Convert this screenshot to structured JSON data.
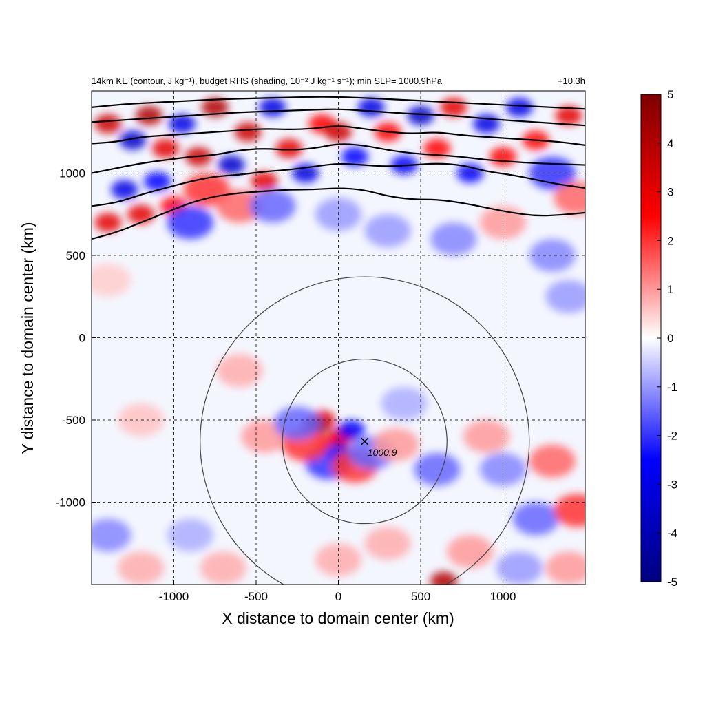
{
  "chart_data": {
    "type": "heatmap",
    "title_left": "14km KE (contour, J kg⁻¹), budget RHS (shading, 10⁻² J kg⁻¹ s⁻¹); min SLP= 1000.9hPa",
    "title_right": "+10.3h",
    "xlabel": "X distance to domain center (km)",
    "ylabel": "Y distance to domain center (km)",
    "xlim": [
      -1500,
      1500
    ],
    "ylim": [
      -1500,
      1500
    ],
    "x_ticks": [
      -1000,
      -500,
      0,
      500,
      1000
    ],
    "y_ticks": [
      -1000,
      -500,
      0,
      500,
      1000
    ],
    "x_tick_labels": [
      "-1000",
      "-500",
      "0",
      "500",
      "1000"
    ],
    "y_tick_labels": [
      "-1000",
      "-500",
      "0",
      "500",
      "1000"
    ],
    "grid": true,
    "colorbar": {
      "min": -5,
      "max": 5,
      "ticks": [
        5,
        4,
        3,
        2,
        1,
        0,
        -1,
        -2,
        -3,
        -4,
        -5
      ],
      "tick_labels": [
        "5",
        "4",
        "3",
        "2",
        "1",
        "0",
        "-1",
        "-2",
        "-3",
        "-4",
        "-5"
      ],
      "colors": [
        "#00007f",
        "#0000ff",
        "#ffffff",
        "#ff0000",
        "#7f0000"
      ],
      "placement": "right"
    },
    "storm_center": {
      "x": 160,
      "y": -630,
      "min_slp_label": "1000.9"
    },
    "range_circles_radius_km": [
      500,
      1000
    ],
    "ke_contours": [
      {
        "points": [
          [
            -1500,
            600
          ],
          [
            -1350,
            640
          ],
          [
            -1200,
            700
          ],
          [
            -1050,
            760
          ],
          [
            -900,
            820
          ],
          [
            -750,
            860
          ],
          [
            -600,
            880
          ],
          [
            -450,
            890
          ],
          [
            -300,
            900
          ],
          [
            -150,
            900
          ],
          [
            0,
            910
          ],
          [
            150,
            900
          ],
          [
            300,
            860
          ],
          [
            450,
            840
          ],
          [
            600,
            840
          ],
          [
            750,
            820
          ],
          [
            900,
            790
          ],
          [
            1050,
            760
          ],
          [
            1200,
            740
          ],
          [
            1350,
            745
          ],
          [
            1500,
            760
          ]
        ]
      },
      {
        "points": [
          [
            -1500,
            800
          ],
          [
            -1350,
            820
          ],
          [
            -1200,
            870
          ],
          [
            -1050,
            910
          ],
          [
            -900,
            950
          ],
          [
            -750,
            980
          ],
          [
            -600,
            990
          ],
          [
            -450,
            1010
          ],
          [
            -300,
            1020
          ],
          [
            -150,
            1040
          ],
          [
            0,
            1060
          ],
          [
            150,
            1050
          ],
          [
            300,
            1040
          ],
          [
            450,
            1050
          ],
          [
            600,
            1060
          ],
          [
            750,
            1050
          ],
          [
            900,
            1010
          ],
          [
            1050,
            990
          ],
          [
            1200,
            960
          ],
          [
            1350,
            930
          ],
          [
            1500,
            910
          ]
        ]
      },
      {
        "points": [
          [
            -1500,
            1000
          ],
          [
            -1350,
            1030
          ],
          [
            -1200,
            1060
          ],
          [
            -1050,
            1080
          ],
          [
            -900,
            1100
          ],
          [
            -750,
            1110
          ],
          [
            -600,
            1140
          ],
          [
            -450,
            1150
          ],
          [
            -300,
            1140
          ],
          [
            -150,
            1150
          ],
          [
            0,
            1180
          ],
          [
            150,
            1170
          ],
          [
            300,
            1140
          ],
          [
            450,
            1120
          ],
          [
            600,
            1110
          ],
          [
            750,
            1100
          ],
          [
            900,
            1080
          ],
          [
            1050,
            1070
          ],
          [
            1200,
            1060
          ],
          [
            1350,
            1055
          ],
          [
            1500,
            1050
          ]
        ]
      },
      {
        "points": [
          [
            -1500,
            1180
          ],
          [
            -1350,
            1190
          ],
          [
            -1200,
            1220
          ],
          [
            -1050,
            1230
          ],
          [
            -900,
            1240
          ],
          [
            -750,
            1250
          ],
          [
            -600,
            1260
          ],
          [
            -450,
            1270
          ],
          [
            -300,
            1265
          ],
          [
            -150,
            1270
          ],
          [
            0,
            1290
          ],
          [
            150,
            1270
          ],
          [
            300,
            1250
          ],
          [
            450,
            1240
          ],
          [
            600,
            1250
          ],
          [
            750,
            1230
          ],
          [
            900,
            1220
          ],
          [
            1050,
            1210
          ],
          [
            1200,
            1200
          ],
          [
            1350,
            1190
          ],
          [
            1500,
            1170
          ]
        ]
      },
      {
        "points": [
          [
            -1500,
            1310
          ],
          [
            -1350,
            1320
          ],
          [
            -1200,
            1330
          ],
          [
            -1050,
            1340
          ],
          [
            -900,
            1350
          ],
          [
            -750,
            1360
          ],
          [
            -600,
            1370
          ],
          [
            -450,
            1375
          ],
          [
            -300,
            1380
          ],
          [
            -150,
            1385
          ],
          [
            0,
            1390
          ],
          [
            150,
            1380
          ],
          [
            300,
            1370
          ],
          [
            450,
            1360
          ],
          [
            600,
            1355
          ],
          [
            750,
            1345
          ],
          [
            900,
            1330
          ],
          [
            1050,
            1320
          ],
          [
            1200,
            1310
          ],
          [
            1350,
            1300
          ],
          [
            1500,
            1290
          ]
        ]
      },
      {
        "points": [
          [
            -1500,
            1400
          ],
          [
            -1300,
            1420
          ],
          [
            -1100,
            1430
          ],
          [
            -900,
            1440
          ],
          [
            -700,
            1450
          ],
          [
            -500,
            1455
          ],
          [
            -300,
            1460
          ],
          [
            -100,
            1465
          ],
          [
            100,
            1460
          ],
          [
            300,
            1450
          ],
          [
            500,
            1440
          ],
          [
            700,
            1430
          ],
          [
            900,
            1420
          ],
          [
            1100,
            1410
          ],
          [
            1300,
            1400
          ],
          [
            1500,
            1390
          ]
        ]
      }
    ],
    "shading_blobs": [
      {
        "x": -1400,
        "y": 1300,
        "v": 3.5
      },
      {
        "x": -1250,
        "y": 1200,
        "v": -3.5
      },
      {
        "x": -1150,
        "y": 1350,
        "v": 4
      },
      {
        "x": -1050,
        "y": 1150,
        "v": 3
      },
      {
        "x": -950,
        "y": 1300,
        "v": -3
      },
      {
        "x": -850,
        "y": 1100,
        "v": 3.5
      },
      {
        "x": -750,
        "y": 1400,
        "v": 4
      },
      {
        "x": -650,
        "y": 1050,
        "v": -3.5
      },
      {
        "x": -550,
        "y": 1250,
        "v": 3.5
      },
      {
        "x": -450,
        "y": 950,
        "v": 3
      },
      {
        "x": -400,
        "y": 1400,
        "v": -3
      },
      {
        "x": -300,
        "y": 1150,
        "v": 3
      },
      {
        "x": -200,
        "y": 1000,
        "v": -3
      },
      {
        "x": -100,
        "y": 1300,
        "v": 2.5
      },
      {
        "x": 0,
        "y": 1250,
        "v": 3.5
      },
      {
        "x": 100,
        "y": 1100,
        "v": -2.5
      },
      {
        "x": 200,
        "y": 1400,
        "v": -3
      },
      {
        "x": 300,
        "y": 1250,
        "v": 2.5
      },
      {
        "x": 400,
        "y": 1050,
        "v": -2.5
      },
      {
        "x": 500,
        "y": 1350,
        "v": -3.5
      },
      {
        "x": 600,
        "y": 1150,
        "v": 2.5
      },
      {
        "x": 700,
        "y": 1400,
        "v": 3
      },
      {
        "x": 800,
        "y": 1000,
        "v": -2.5
      },
      {
        "x": 900,
        "y": 1300,
        "v": -3
      },
      {
        "x": 1000,
        "y": 1100,
        "v": 2.5
      },
      {
        "x": 1100,
        "y": 1400,
        "v": -3
      },
      {
        "x": 1200,
        "y": 1200,
        "v": 2.5
      },
      {
        "x": 1300,
        "y": 1000,
        "v": -2
      },
      {
        "x": 1400,
        "y": 1350,
        "v": 3
      },
      {
        "x": 1450,
        "y": 850,
        "v": 1.5
      },
      {
        "x": -1400,
        "y": 700,
        "v": 3
      },
      {
        "x": -1300,
        "y": 900,
        "v": -3
      },
      {
        "x": -1200,
        "y": 750,
        "v": 3
      },
      {
        "x": -1100,
        "y": 950,
        "v": -2.5
      },
      {
        "x": -1000,
        "y": 800,
        "v": 2.5
      },
      {
        "x": -900,
        "y": 700,
        "v": -2
      },
      {
        "x": -800,
        "y": 900,
        "v": 2
      },
      {
        "x": -600,
        "y": 800,
        "v": 1.5
      },
      {
        "x": -400,
        "y": 800,
        "v": -1.5
      },
      {
        "x": 0,
        "y": 750,
        "v": -1
      },
      {
        "x": 300,
        "y": 650,
        "v": -1
      },
      {
        "x": 700,
        "y": 600,
        "v": -1.2
      },
      {
        "x": 1000,
        "y": 700,
        "v": 1
      },
      {
        "x": 1300,
        "y": 500,
        "v": -1.2
      },
      {
        "x": 1400,
        "y": 250,
        "v": -1
      },
      {
        "x": -1400,
        "y": 350,
        "v": 0.5
      },
      {
        "x": -1200,
        "y": -500,
        "v": 0.6
      },
      {
        "x": -600,
        "y": -200,
        "v": 0.8
      },
      {
        "x": -450,
        "y": -600,
        "v": 1
      },
      {
        "x": -100,
        "y": -500,
        "v": 3
      },
      {
        "x": -140,
        "y": -540,
        "v": 4.5
      },
      {
        "x": -40,
        "y": -650,
        "v": 2.5
      },
      {
        "x": 20,
        "y": -600,
        "v": 3
      },
      {
        "x": 0,
        "y": -700,
        "v": -3
      },
      {
        "x": -60,
        "y": -760,
        "v": -2
      },
      {
        "x": 80,
        "y": -560,
        "v": -2.5
      },
      {
        "x": 100,
        "y": -780,
        "v": 2
      },
      {
        "x": 200,
        "y": -700,
        "v": -1.5
      },
      {
        "x": -200,
        "y": -650,
        "v": 2
      },
      {
        "x": -250,
        "y": -520,
        "v": -1.5
      },
      {
        "x": 350,
        "y": -650,
        "v": 1
      },
      {
        "x": 400,
        "y": -400,
        "v": -0.8
      },
      {
        "x": 600,
        "y": -800,
        "v": -1.5
      },
      {
        "x": 900,
        "y": -600,
        "v": 1
      },
      {
        "x": 1000,
        "y": -800,
        "v": -1.2
      },
      {
        "x": 1200,
        "y": -1100,
        "v": -1.5
      },
      {
        "x": 1300,
        "y": -750,
        "v": 1.5
      },
      {
        "x": 1450,
        "y": -1050,
        "v": 2
      },
      {
        "x": -1400,
        "y": -1200,
        "v": -1.2
      },
      {
        "x": -1200,
        "y": -1400,
        "v": 0.8
      },
      {
        "x": -900,
        "y": -1200,
        "v": -0.8
      },
      {
        "x": -700,
        "y": -1400,
        "v": 0.8
      },
      {
        "x": 0,
        "y": -1350,
        "v": 0.8
      },
      {
        "x": 300,
        "y": -1250,
        "v": 0.8
      },
      {
        "x": 640,
        "y": -1480,
        "v": 4
      },
      {
        "x": 800,
        "y": -1300,
        "v": 1
      },
      {
        "x": 1100,
        "y": -1400,
        "v": -1
      },
      {
        "x": 1400,
        "y": -1400,
        "v": 1
      }
    ]
  }
}
